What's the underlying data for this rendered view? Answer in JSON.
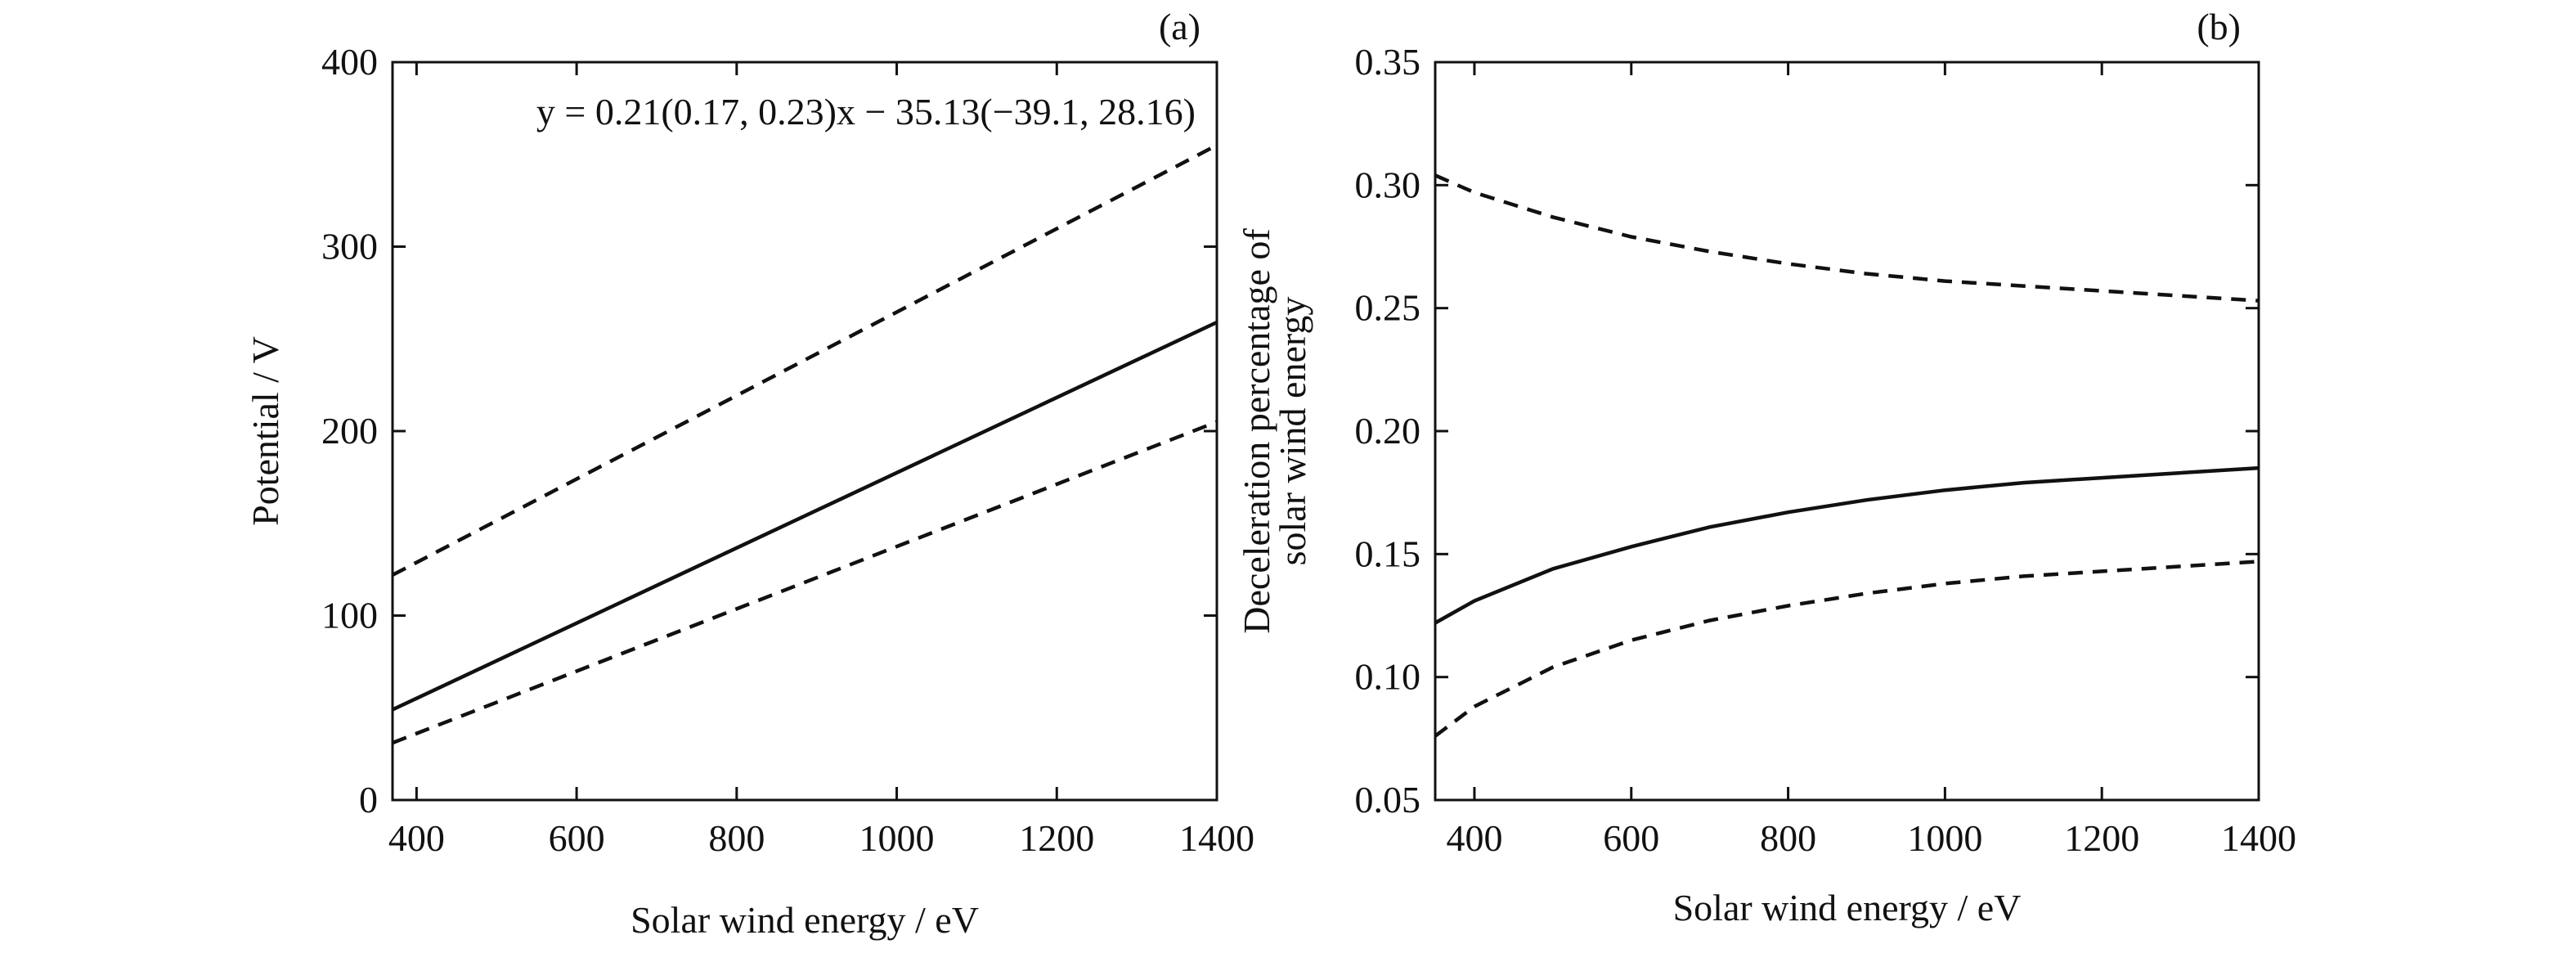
{
  "chart_data": [
    {
      "type": "line",
      "panel_label": "(a)",
      "xlabel": "Solar wind energy / eV",
      "ylabel": "Potential / V",
      "annotation": "y = 0.21(0.17, 0.23)x − 35.13(−39.1, 28.16)",
      "xlim": [
        370,
        1400
      ],
      "ylim": [
        0,
        400
      ],
      "xticks": [
        400,
        600,
        800,
        1000,
        1200,
        1400
      ],
      "yticks": [
        0,
        100,
        200,
        300,
        400
      ],
      "grid": false,
      "series": [
        {
          "style": "solid",
          "x": [
            370,
            1400
          ],
          "y": [
            49,
            259
          ]
        },
        {
          "style": "dashed",
          "x": [
            370,
            1400
          ],
          "y": [
            122,
            355
          ]
        },
        {
          "style": "dashed",
          "x": [
            370,
            1400
          ],
          "y": [
            31,
            205
          ]
        }
      ]
    },
    {
      "type": "line",
      "panel_label": "(b)",
      "xlabel": "Solar wind energy / eV",
      "ylabel": "Deceleration percentage of solar wind energy",
      "xlim": [
        350,
        1400
      ],
      "ylim": [
        0.05,
        0.35
      ],
      "xticks": [
        400,
        600,
        800,
        1000,
        1200,
        1400
      ],
      "yticks": [
        0.05,
        0.1,
        0.15,
        0.2,
        0.25,
        0.3,
        0.35
      ],
      "ytick_labels": [
        "0.05",
        "0.10",
        "0.15",
        "0.20",
        "0.25",
        "0.30",
        "0.35"
      ],
      "grid": false,
      "series": [
        {
          "style": "solid",
          "x": [
            350,
            400,
            500,
            600,
            700,
            800,
            900,
            1000,
            1100,
            1200,
            1300,
            1400
          ],
          "y": [
            0.122,
            0.131,
            0.144,
            0.153,
            0.161,
            0.167,
            0.172,
            0.176,
            0.179,
            0.181,
            0.183,
            0.185
          ]
        },
        {
          "style": "dashed",
          "x": [
            350,
            400,
            500,
            600,
            700,
            800,
            900,
            1000,
            1100,
            1200,
            1300,
            1400
          ],
          "y": [
            0.304,
            0.297,
            0.287,
            0.279,
            0.273,
            0.268,
            0.264,
            0.261,
            0.259,
            0.257,
            0.255,
            0.253
          ]
        },
        {
          "style": "dashed",
          "x": [
            350,
            400,
            500,
            600,
            700,
            800,
            900,
            1000,
            1100,
            1200,
            1300,
            1400
          ],
          "y": [
            0.076,
            0.088,
            0.104,
            0.115,
            0.123,
            0.129,
            0.134,
            0.138,
            0.141,
            0.143,
            0.145,
            0.147
          ]
        }
      ]
    }
  ]
}
